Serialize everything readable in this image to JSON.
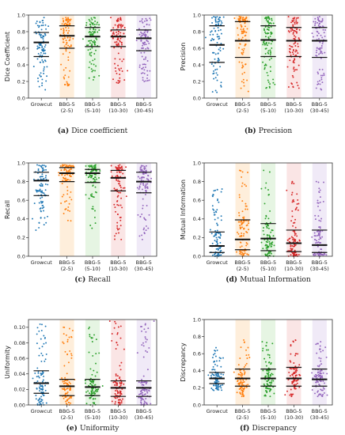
{
  "figure": {
    "colors": [
      "#1f77b4",
      "#ff7f0e",
      "#2ca02c",
      "#d62728",
      "#9467bd"
    ],
    "band_colors": [
      "#ffffff",
      "#fde2c3",
      "#d6efd0",
      "#f7d3d3",
      "#e6dcf2"
    ]
  },
  "chart_data": [
    {
      "type": "scatter",
      "panel_letter": "(a)",
      "caption": "Dice coefficient",
      "ylabel": "Dice Coefficient",
      "ylim": [
        0.0,
        1.0
      ],
      "yticks": [
        "0.0",
        "0.2",
        "0.4",
        "0.6",
        "0.8",
        "1.0"
      ],
      "categories": [
        "Growcut",
        "BBG-5|(2-5)",
        "BBG-5|(5-10)",
        "BBG-5|(10-30)",
        "BBG-5|(30-45)"
      ],
      "series": [
        {
          "median": 0.67,
          "q1": 0.5,
          "q3": 0.79,
          "min": 0.1,
          "max": 0.97
        },
        {
          "median": 0.75,
          "q1": 0.6,
          "q3": 0.87,
          "min": 0.15,
          "max": 0.97
        },
        {
          "median": 0.74,
          "q1": 0.62,
          "q3": 0.85,
          "min": 0.22,
          "max": 0.97
        },
        {
          "median": 0.74,
          "q1": 0.62,
          "q3": 0.82,
          "min": 0.18,
          "max": 0.97
        },
        {
          "median": 0.72,
          "q1": 0.57,
          "q3": 0.82,
          "min": 0.2,
          "max": 0.96
        }
      ]
    },
    {
      "type": "scatter",
      "panel_letter": "(b)",
      "caption": "Precision",
      "ylabel": "Precision",
      "ylim": [
        0.0,
        1.0
      ],
      "yticks": [
        "0.0",
        "0.2",
        "0.4",
        "0.6",
        "0.8",
        "1.0"
      ],
      "categories": [
        "Growcut",
        "BBG-5|(2-5)",
        "BBG-5|(5-10)",
        "BBG-5|(10-30)",
        "BBG-5|(30-45)"
      ],
      "series": [
        {
          "median": 0.64,
          "q1": 0.43,
          "q3": 0.87,
          "min": 0.07,
          "max": 0.98
        },
        {
          "median": 0.69,
          "q1": 0.49,
          "q3": 0.92,
          "min": 0.08,
          "max": 0.98
        },
        {
          "median": 0.7,
          "q1": 0.5,
          "q3": 0.87,
          "min": 0.12,
          "max": 0.98
        },
        {
          "median": 0.69,
          "q1": 0.5,
          "q3": 0.85,
          "min": 0.12,
          "max": 0.98
        },
        {
          "median": 0.69,
          "q1": 0.49,
          "q3": 0.85,
          "min": 0.1,
          "max": 0.98
        }
      ]
    },
    {
      "type": "scatter",
      "panel_letter": "(c)",
      "caption": "Recall",
      "ylabel": "Recall",
      "ylim": [
        0.0,
        1.0
      ],
      "yticks": [
        "0.0",
        "0.2",
        "0.4",
        "0.6",
        "0.8",
        "1.0"
      ],
      "categories": [
        "Growcut",
        "BBG-5|(2-5)",
        "BBG-5|(5-10)",
        "BBG-5|(10-30)",
        "BBG-5|(30-45)"
      ],
      "series": [
        {
          "median": 0.81,
          "q1": 0.65,
          "q3": 0.9,
          "min": 0.28,
          "max": 0.98
        },
        {
          "median": 0.89,
          "q1": 0.8,
          "q3": 0.95,
          "min": 0.38,
          "max": 0.98
        },
        {
          "median": 0.89,
          "q1": 0.79,
          "q3": 0.93,
          "min": 0.3,
          "max": 0.98
        },
        {
          "median": 0.84,
          "q1": 0.7,
          "q3": 0.92,
          "min": 0.18,
          "max": 0.98
        },
        {
          "median": 0.8,
          "q1": 0.68,
          "q3": 0.9,
          "min": 0.18,
          "max": 0.97
        }
      ]
    },
    {
      "type": "scatter",
      "panel_letter": "(d)",
      "caption": "Mutual Information",
      "ylabel": "Mutual Information",
      "ylim": [
        0.0,
        1.0
      ],
      "yticks": [
        "0.0",
        "0.2",
        "0.4",
        "0.6",
        "0.8",
        "1.0"
      ],
      "categories": [
        "Growcut",
        "BBG-5|(2-5)",
        "BBG-5|(5-10)",
        "BBG-5|(10-30)",
        "BBG-5|(30-45)"
      ],
      "series": [
        {
          "median": 0.11,
          "q1": 0.04,
          "q3": 0.26,
          "min": 0.0,
          "max": 0.72
        },
        {
          "median": 0.18,
          "q1": 0.07,
          "q3": 0.39,
          "min": 0.0,
          "max": 0.92
        },
        {
          "median": 0.19,
          "q1": 0.06,
          "q3": 0.35,
          "min": 0.0,
          "max": 0.92
        },
        {
          "median": 0.14,
          "q1": 0.05,
          "q3": 0.28,
          "min": 0.0,
          "max": 0.8
        },
        {
          "median": 0.12,
          "q1": 0.04,
          "q3": 0.28,
          "min": 0.0,
          "max": 0.8
        }
      ]
    },
    {
      "type": "scatter",
      "panel_letter": "(e)",
      "caption": "Uniformity",
      "ylabel": "Uniformity",
      "ylim": [
        0.0,
        0.11
      ],
      "yticks": [
        "0.00",
        "0.02",
        "0.04",
        "0.06",
        "0.08",
        "0.10"
      ],
      "categories": [
        "Growcut",
        "BBG-5|(2-5)",
        "BBG-5|(5-10)",
        "BBG-5|(10-30)",
        "BBG-5|(30-45)"
      ],
      "series": [
        {
          "median": 0.028,
          "q1": 0.015,
          "q3": 0.044,
          "min": 0.0,
          "max": 0.104
        },
        {
          "median": 0.024,
          "q1": 0.012,
          "q3": 0.033,
          "min": 0.0,
          "max": 0.1
        },
        {
          "median": 0.023,
          "q1": 0.012,
          "q3": 0.033,
          "min": 0.0,
          "max": 0.1
        },
        {
          "median": 0.022,
          "q1": 0.011,
          "q3": 0.031,
          "min": 0.0,
          "max": 0.108
        },
        {
          "median": 0.022,
          "q1": 0.011,
          "q3": 0.031,
          "min": 0.0,
          "max": 0.108
        }
      ]
    },
    {
      "type": "scatter",
      "panel_letter": "(f)",
      "caption": "Discrepancy",
      "ylabel": "Discrepancy",
      "ylim": [
        0.0,
        1.0
      ],
      "yticks": [
        "0.0",
        "0.2",
        "0.4",
        "0.6",
        "0.8",
        "1.0"
      ],
      "categories": [
        "Growcut",
        "BBG-5|(2-5)",
        "BBG-5|(5-10)",
        "BBG-5|(10-30)",
        "BBG-5|(30-45)"
      ],
      "series": [
        {
          "median": 0.31,
          "q1": 0.25,
          "q3": 0.38,
          "min": 0.17,
          "max": 0.67
        },
        {
          "median": 0.31,
          "q1": 0.22,
          "q3": 0.42,
          "min": 0.1,
          "max": 0.76
        },
        {
          "median": 0.31,
          "q1": 0.22,
          "q3": 0.42,
          "min": 0.1,
          "max": 0.74
        },
        {
          "median": 0.31,
          "q1": 0.22,
          "q3": 0.44,
          "min": 0.1,
          "max": 0.76
        },
        {
          "median": 0.3,
          "q1": 0.22,
          "q3": 0.42,
          "min": 0.1,
          "max": 0.74
        }
      ]
    }
  ]
}
